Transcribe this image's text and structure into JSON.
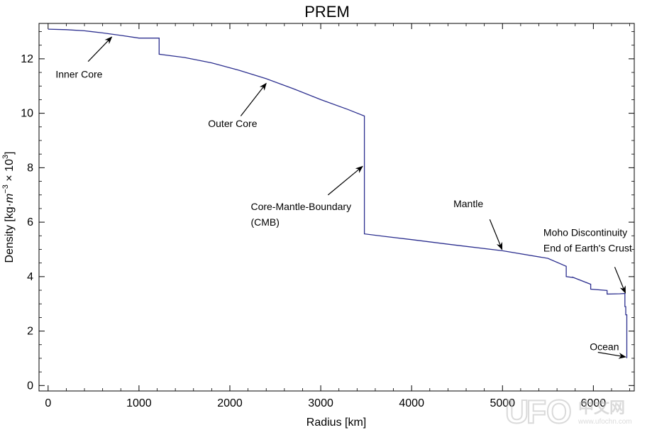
{
  "chart_data": {
    "type": "line",
    "title": "PREM",
    "xlabel": "Radius [km]",
    "ylabel_parts": {
      "prefix": "Density [kg·",
      "m": "m",
      "exp1": "−3",
      "times": " × 10",
      "exp2": "3",
      "suffix": "]"
    },
    "xlim": [
      -100,
      6450
    ],
    "ylim": [
      -0.2,
      13.3
    ],
    "x_ticks": [
      0,
      1000,
      2000,
      3000,
      4000,
      5000,
      6000
    ],
    "x_tick_labels": [
      "0",
      "1000",
      "2000",
      "3000",
      "4000",
      "5000",
      "6000"
    ],
    "y_ticks": [
      0,
      2,
      4,
      6,
      8,
      10,
      12
    ],
    "y_tick_labels": [
      "0",
      "2",
      "4",
      "6",
      "8",
      "10",
      "12"
    ],
    "grid": false,
    "series_color": "#2c2f8f",
    "series": [
      {
        "x": [
          0,
          200,
          400,
          600,
          800,
          1000,
          1221.5,
          1221.5,
          1500,
          1800,
          2100,
          2400,
          2700,
          3000,
          3300,
          3480,
          3480,
          3700,
          4000,
          4500,
          5000,
          5500,
          5701,
          5701,
          5771,
          5771,
          5971,
          5971,
          6151,
          6151,
          6291,
          6346.6,
          6346.6,
          6356,
          6356,
          6368,
          6368,
          6371
        ],
        "y": [
          13.09,
          13.07,
          13.03,
          12.95,
          12.86,
          12.76,
          12.76,
          12.17,
          12.05,
          11.85,
          11.58,
          11.27,
          10.9,
          10.5,
          10.14,
          9.9,
          5.57,
          5.48,
          5.36,
          5.15,
          4.95,
          4.67,
          4.38,
          4.0,
          3.97,
          3.98,
          3.72,
          3.54,
          3.49,
          3.36,
          3.37,
          3.38,
          2.9,
          2.9,
          2.6,
          2.6,
          1.02,
          1.02
        ]
      }
    ],
    "annotations": [
      {
        "lines": [
          "Inner Core"
        ],
        "text_at": [
          82,
          11.3
        ],
        "anchor": "start",
        "arrow_from": [
          440,
          11.9
        ],
        "arrow_to": [
          700,
          12.8
        ]
      },
      {
        "lines": [
          "Outer Core"
        ],
        "text_at": [
          1760,
          9.5
        ],
        "anchor": "start",
        "arrow_from": [
          2120,
          9.9
        ],
        "arrow_to": [
          2400,
          11.1
        ]
      },
      {
        "lines": [
          "Core-Mantle-Boundary",
          "(CMB)"
        ],
        "text_at": [
          2230,
          6.45
        ],
        "anchor": "start",
        "arrow_from": [
          3080,
          7.0
        ],
        "arrow_to": [
          3460,
          8.05
        ]
      },
      {
        "lines": [
          "Mantle"
        ],
        "text_at": [
          4460,
          6.55
        ],
        "anchor": "start",
        "arrow_from": [
          4860,
          6.1
        ],
        "arrow_to": [
          4995,
          5.0
        ]
      },
      {
        "lines": [
          "Moho Discontinuity",
          "End of Earth's Crust"
        ],
        "text_at": [
          5450,
          5.5
        ],
        "anchor": "start",
        "arrow_from": [
          6235,
          4.35
        ],
        "arrow_to": [
          6352,
          3.4
        ]
      },
      {
        "lines": [
          "Ocean"
        ],
        "text_at": [
          5960,
          1.3
        ],
        "anchor": "start",
        "arrow_from": [
          6050,
          1.22
        ],
        "arrow_to": [
          6355,
          1.05
        ]
      }
    ]
  },
  "watermark": {
    "letters": [
      "U",
      "F",
      "O"
    ],
    "site_cn": "中文网",
    "site_url": "www.ufochn.com"
  }
}
